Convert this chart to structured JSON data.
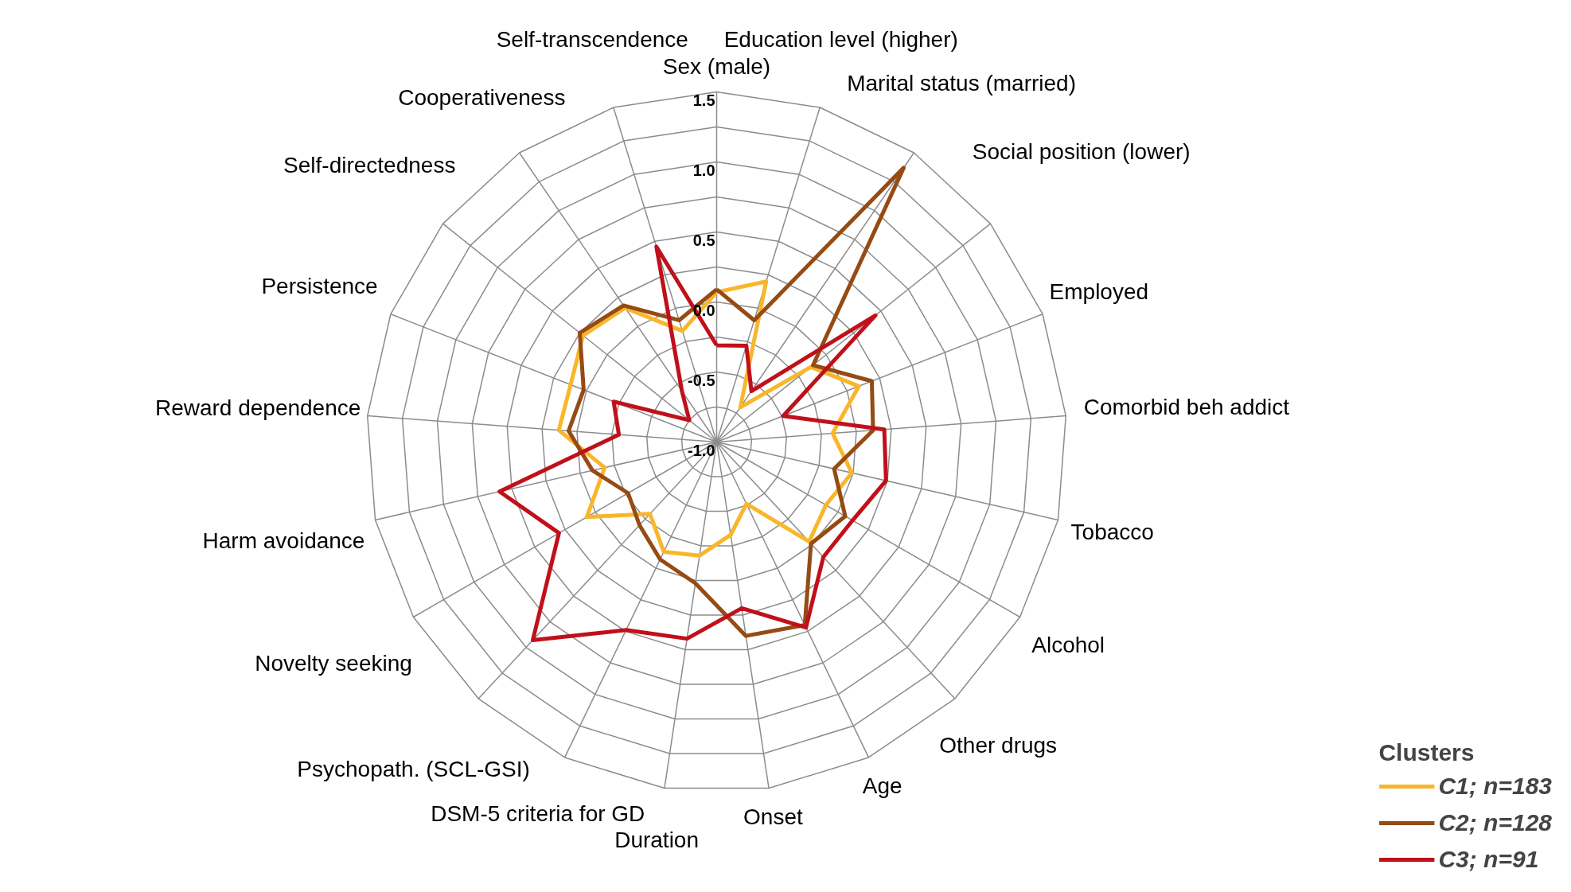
{
  "chart_data": {
    "type": "radar",
    "categories": [
      "Sex (male)",
      "Education level (higher)",
      "Marital status (married)",
      "Social position (lower)",
      "Employed",
      "Comorbid beh addict",
      "Tobacco",
      "Alcohol",
      "Other drugs",
      "Age",
      "Onset",
      "Duration",
      "DSM-5 criteria for GD",
      "Psychopath. (SCL-GSI)",
      "Novelty seeking",
      "Harm avoidance",
      "Reward dependence",
      "Persistence",
      "Self-directedness",
      "Cooperativeness",
      "Self-transcendence"
    ],
    "series": [
      {
        "name": "C1; n=183",
        "color": "#f9b62a",
        "values": [
          0.07,
          0.2,
          -0.7,
          -0.14,
          0.09,
          -0.17,
          -0.01,
          -0.1,
          -0.03,
          -0.51,
          -0.33,
          -0.18,
          -0.13,
          -0.3,
          0.07,
          -0.18,
          0.13,
          0.12,
          0.22,
          0.16,
          -0.17
        ]
      },
      {
        "name": "C2; n=128",
        "color": "#954b13",
        "values": [
          0.09,
          -0.09,
          1.37,
          -0.12,
          0.19,
          0.12,
          -0.14,
          0.06,
          -0.01,
          0.45,
          0.4,
          0.02,
          -0.07,
          -0.19,
          -0.27,
          -0.09,
          0.06,
          0.02,
          0.25,
          0.18,
          -0.09
        ]
      },
      {
        "name": "C3; n=91",
        "color": "#c0101a",
        "values": [
          -0.31,
          -0.28,
          -0.56,
          0.45,
          -0.49,
          0.2,
          0.24,
          0.12,
          0.12,
          0.47,
          0.2,
          0.42,
          0.49,
          0.93,
          0.3,
          0.59,
          -0.3,
          -0.21,
          -0.75,
          -0.56,
          0.46
        ]
      }
    ],
    "ylim": [
      -1.0,
      1.5
    ],
    "yticks": [
      {
        "value": -1.0,
        "label": "-1.0"
      },
      {
        "value": -0.5,
        "label": "-0.5"
      },
      {
        "value": 0.0,
        "label": "0.0"
      },
      {
        "value": 0.5,
        "label": "0.5"
      },
      {
        "value": 1.0,
        "label": "1.0"
      },
      {
        "value": 1.5,
        "label": "1.5"
      }
    ],
    "legend_title": "Clusters",
    "legend": "bottom right",
    "grid": true,
    "line_style": "solid"
  }
}
